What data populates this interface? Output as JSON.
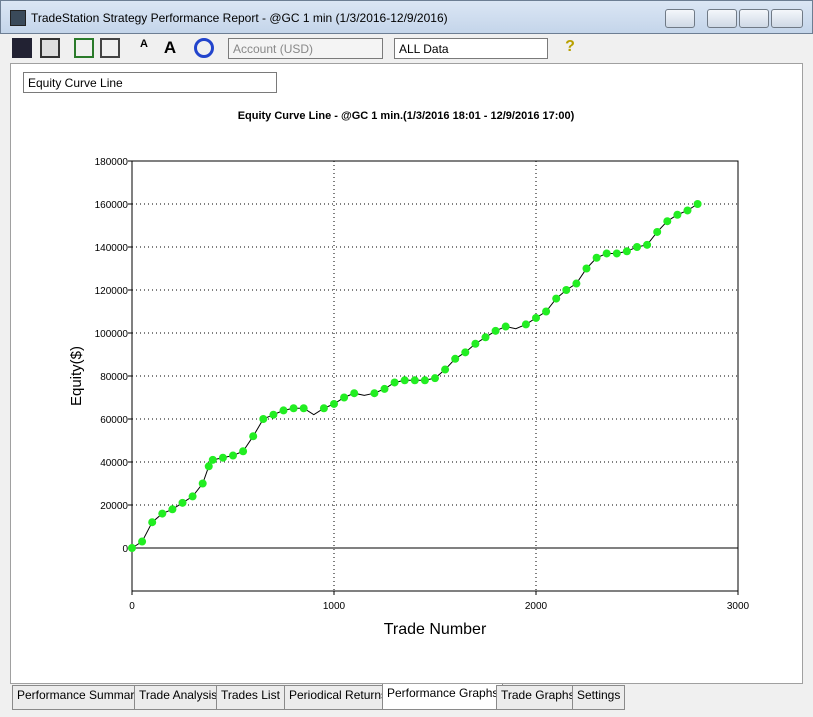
{
  "window": {
    "title": "TradeStation Strategy Performance Report - @GC 1 min (1/3/2016-12/9/2016)",
    "account": "Account (USD)",
    "data_range": "ALL Data",
    "graph_select": "Equity Curve Line",
    "tabs": [
      "Performance Summary",
      "Trade Analysis",
      "Trades List",
      "Periodical Returns",
      "Performance Graphs",
      "Trade Graphs",
      "Settings"
    ],
    "active_tab": 4
  },
  "chart_data": {
    "type": "line",
    "title": "Equity Curve Line - @GC 1 min.(1/3/2016 18:01 - 12/9/2016 17:00)",
    "x_label": "Trade Number",
    "y_label": "Equity($)",
    "x": [
      0,
      50,
      100,
      150,
      200,
      250,
      300,
      350,
      380,
      400,
      450,
      500,
      550,
      600,
      650,
      700,
      750,
      800,
      850,
      900,
      950,
      1000,
      1050,
      1100,
      1150,
      1200,
      1250,
      1300,
      1350,
      1400,
      1450,
      1500,
      1550,
      1600,
      1650,
      1700,
      1750,
      1800,
      1850,
      1900,
      1950,
      2000,
      2050,
      2100,
      2150,
      2200,
      2250,
      2300,
      2350,
      2400,
      2450,
      2500,
      2550,
      2600,
      2650,
      2700,
      2750,
      2800
    ],
    "series": [
      {
        "name": "Equity",
        "color": "#000000",
        "marker_color": "#22ee22",
        "values": [
          0,
          3000,
          12000,
          16000,
          18000,
          21000,
          24000,
          30000,
          38000,
          41000,
          42000,
          43000,
          45000,
          52000,
          60000,
          62000,
          64000,
          65000,
          65000,
          62000,
          65000,
          67000,
          70000,
          72000,
          71000,
          72000,
          74000,
          77000,
          78000,
          78000,
          78000,
          79000,
          83000,
          88000,
          91000,
          95000,
          98000,
          101000,
          103000,
          102000,
          104000,
          107000,
          110000,
          116000,
          120000,
          123000,
          130000,
          135000,
          137000,
          137000,
          138000,
          140000,
          141000,
          147000,
          152000,
          155000,
          157000,
          160000
        ]
      }
    ],
    "xlim": [
      0,
      3000
    ],
    "xticks": [
      0,
      1000,
      2000,
      3000
    ],
    "ylim": [
      -20000,
      180000
    ],
    "yticks": [
      0,
      20000,
      40000,
      60000,
      80000,
      100000,
      120000,
      140000,
      160000,
      180000
    ],
    "grid": true
  }
}
